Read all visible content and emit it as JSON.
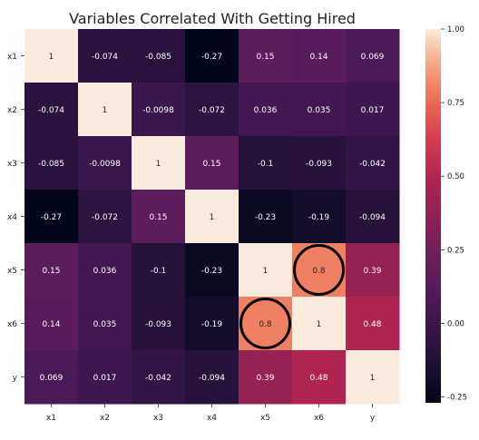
{
  "chart_data": {
    "type": "heatmap",
    "title": "Variables Correlated With Getting Hired",
    "x_labels": [
      "x1",
      "x2",
      "x3",
      "x4",
      "x5",
      "x6",
      "y"
    ],
    "y_labels": [
      "x1",
      "x2",
      "x3",
      "x4",
      "x5",
      "x6",
      "y"
    ],
    "values": [
      [
        1,
        -0.074,
        -0.085,
        -0.27,
        0.15,
        0.14,
        0.069
      ],
      [
        -0.074,
        1,
        -0.0098,
        -0.072,
        0.036,
        0.035,
        0.017
      ],
      [
        -0.085,
        -0.0098,
        1,
        0.15,
        -0.1,
        -0.093,
        -0.042
      ],
      [
        -0.27,
        -0.072,
        0.15,
        1,
        -0.23,
        -0.19,
        -0.094
      ],
      [
        0.15,
        0.036,
        -0.1,
        -0.23,
        1,
        0.8,
        0.39
      ],
      [
        0.14,
        0.035,
        -0.093,
        -0.19,
        0.8,
        1,
        0.48
      ],
      [
        0.069,
        0.017,
        -0.042,
        -0.094,
        0.39,
        0.48,
        1
      ]
    ],
    "cell_labels": [
      [
        "1",
        "-0.074",
        "-0.085",
        "-0.27",
        "0.15",
        "0.14",
        "0.069"
      ],
      [
        "-0.074",
        "1",
        "-0.0098",
        "-0.072",
        "0.036",
        "0.035",
        "0.017"
      ],
      [
        "-0.085",
        "-0.0098",
        "1",
        "0.15",
        "-0.1",
        "-0.093",
        "-0.042"
      ],
      [
        "-0.27",
        "-0.072",
        "0.15",
        "1",
        "-0.23",
        "-0.19",
        "-0.094"
      ],
      [
        "0.15",
        "0.036",
        "-0.1",
        "-0.23",
        "1",
        "0.8",
        "0.39"
      ],
      [
        "0.14",
        "0.035",
        "-0.093",
        "-0.19",
        "0.8",
        "1",
        "0.48"
      ],
      [
        "0.069",
        "0.017",
        "-0.042",
        "-0.094",
        "0.39",
        "0.48",
        "1"
      ]
    ],
    "colorbar": {
      "range": [
        -0.27,
        1
      ],
      "ticks": [
        1.0,
        0.75,
        0.5,
        0.25,
        0.0,
        -0.25
      ],
      "tick_labels": [
        "1.00",
        "0.75",
        "0.50",
        "0.25",
        "0.00",
        "-0.25"
      ]
    },
    "colormap": "rocket",
    "highlighted_cells": [
      {
        "row": "x5",
        "col": "x6"
      },
      {
        "row": "x6",
        "col": "x5"
      }
    ]
  }
}
